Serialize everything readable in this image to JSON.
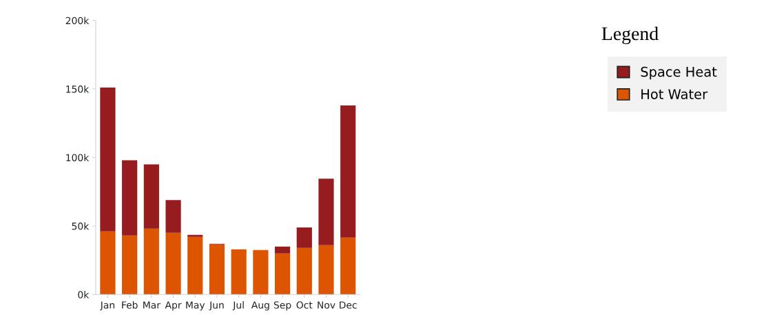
{
  "chart_data": {
    "type": "bar",
    "stacked": true,
    "categories": [
      "Jan",
      "Feb",
      "Mar",
      "Apr",
      "May",
      "Jun",
      "Jul",
      "Aug",
      "Sep",
      "Oct",
      "Nov",
      "Dec"
    ],
    "series": [
      {
        "name": "Hot Water",
        "color": "#dd5500",
        "values": [
          46000,
          43000,
          48000,
          45000,
          42000,
          36500,
          33000,
          32500,
          30000,
          34000,
          36000,
          41500
        ]
      },
      {
        "name": "Space Heat",
        "color": "#971c1f",
        "values": [
          105000,
          55000,
          47000,
          24000,
          1500,
          500,
          0,
          0,
          5000,
          15000,
          48500,
          96500
        ]
      }
    ],
    "ylim": [
      0,
      200000
    ],
    "yticks": [
      {
        "value": 0,
        "label": "0k"
      },
      {
        "value": 50000,
        "label": "50k"
      },
      {
        "value": 100000,
        "label": "100k"
      },
      {
        "value": 150000,
        "label": "150k"
      },
      {
        "value": 200000,
        "label": "200k"
      }
    ],
    "grid": false,
    "legend": "right",
    "legend_title": "Legend"
  }
}
